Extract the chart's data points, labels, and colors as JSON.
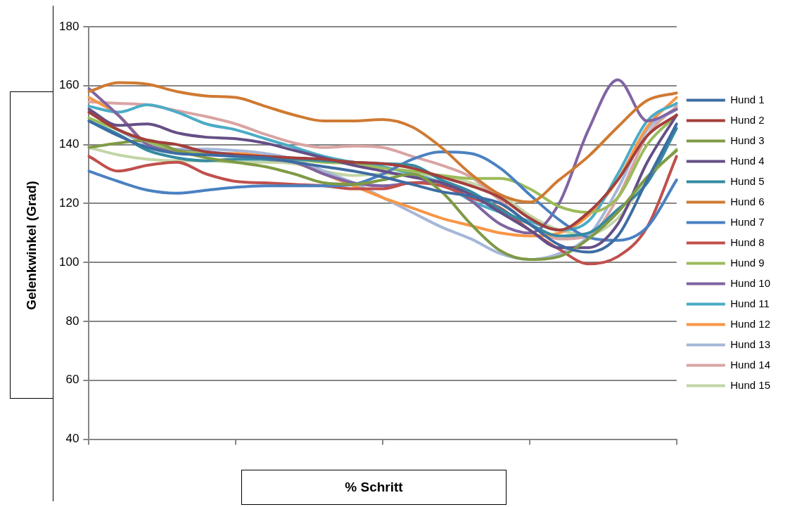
{
  "chart_data": {
    "type": "line",
    "xlabel": "% Schritt",
    "ylabel": "Gelenkwinkel (Grad)",
    "categories": [
      null,
      null,
      null,
      null,
      null,
      null,
      null,
      null,
      null,
      null,
      null,
      null,
      null,
      null,
      null,
      null,
      null,
      null,
      null,
      null,
      null
    ],
    "ylim": [
      40,
      180
    ],
    "yticks": [
      40,
      60,
      80,
      100,
      120,
      140,
      160,
      180
    ],
    "grid": "y",
    "legend": "right",
    "marker": "none",
    "line_style": "solid",
    "series": [
      {
        "name": "Hund 1",
        "color": "#3d6ca3",
        "values": [
          148,
          143,
          139,
          137,
          136.5,
          136,
          135.5,
          134,
          132.5,
          131,
          129,
          126.5,
          124,
          122.5,
          120,
          113,
          106,
          103.5,
          109,
          128,
          147
        ]
      },
      {
        "name": "Hund 2",
        "color": "#a33f3c",
        "values": [
          151,
          145,
          141.5,
          140,
          137.5,
          136.5,
          136,
          135.5,
          135,
          134,
          133.5,
          132,
          129,
          126,
          122,
          115,
          111,
          117,
          128,
          143,
          150
        ]
      },
      {
        "name": "Hund 3",
        "color": "#7f9a45",
        "values": [
          139,
          140.5,
          141.5,
          138,
          135.5,
          134,
          132.5,
          130,
          127,
          126.5,
          128,
          130,
          124,
          113,
          104,
          101,
          102,
          108,
          117,
          129,
          138
        ]
      },
      {
        "name": "Hund 4",
        "color": "#654f86",
        "values": [
          152,
          146.5,
          147,
          144,
          142.5,
          142,
          140.5,
          138,
          135.5,
          133,
          131,
          129,
          127,
          123,
          117,
          111,
          105,
          105,
          113,
          134,
          150
        ]
      },
      {
        "name": "Hund 5",
        "color": "#358ba0",
        "values": [
          148,
          143.5,
          138,
          135.5,
          134.5,
          135,
          135,
          135,
          134.5,
          134,
          133.5,
          133,
          128,
          124,
          118,
          113,
          109,
          110,
          118,
          127,
          145.5
        ]
      },
      {
        "name": "Hund 6",
        "color": "#cf7a32",
        "values": [
          158,
          161,
          160.5,
          158,
          156.5,
          156,
          153,
          150,
          148,
          148,
          148.5,
          146,
          139,
          130,
          123,
          120.5,
          128,
          136,
          146,
          155,
          157.5
        ]
      },
      {
        "name": "Hund 7",
        "color": "#4a81c2",
        "values": [
          131,
          127.5,
          124.5,
          123.5,
          124.5,
          125.5,
          126,
          126,
          126,
          126.5,
          130,
          135,
          137.5,
          137,
          132,
          123,
          114.5,
          108.5,
          107.5,
          112,
          128
        ]
      },
      {
        "name": "Hund 8",
        "color": "#c0504d",
        "values": [
          136,
          131,
          133,
          134,
          130,
          127.5,
          127,
          126.5,
          126,
          125,
          125,
          127,
          126,
          122,
          118.5,
          111,
          104.5,
          99.5,
          102,
          112,
          136
        ]
      },
      {
        "name": "Hund 9",
        "color": "#9bbb59",
        "values": [
          149,
          145,
          141,
          138,
          137,
          136,
          135.5,
          135,
          134,
          133.5,
          132,
          131,
          129.5,
          128.5,
          128.5,
          125,
          119,
          117,
          122,
          140,
          150
        ]
      },
      {
        "name": "Hund 10",
        "color": "#8064a2",
        "values": [
          159,
          150,
          140,
          138,
          137.5,
          136.5,
          135,
          134,
          130,
          127,
          126,
          127,
          127.5,
          121,
          113,
          110,
          120,
          145,
          162,
          148,
          152
        ]
      },
      {
        "name": "Hund 11",
        "color": "#4bacc6",
        "values": [
          153,
          151,
          153.5,
          151,
          147,
          145,
          142,
          139,
          136,
          134,
          132.5,
          130,
          127,
          121,
          117,
          114,
          111,
          114,
          130,
          148,
          154
        ]
      },
      {
        "name": "Hund 12",
        "color": "#f79646",
        "values": [
          156,
          150,
          140,
          137.5,
          137,
          137,
          136,
          134,
          130,
          126,
          122,
          118.5,
          115,
          112.5,
          110,
          109,
          110,
          116,
          128,
          146,
          156
        ]
      },
      {
        "name": "Hund 13",
        "color": "#a5b7d8",
        "values": [
          151,
          145,
          140,
          138.5,
          138.5,
          138,
          137,
          135,
          131,
          127,
          122,
          117,
          112,
          108,
          103,
          101,
          103,
          109,
          125,
          145,
          152
        ]
      },
      {
        "name": "Hund 14",
        "color": "#d9a4a3",
        "values": [
          154.5,
          154,
          153.5,
          151.5,
          149.5,
          147,
          143.5,
          140.5,
          139,
          139.5,
          139,
          136,
          133,
          129,
          121,
          113,
          108,
          109,
          122,
          143,
          153
        ]
      },
      {
        "name": "Hund 15",
        "color": "#c3d5a6",
        "values": [
          139,
          136.5,
          135,
          134.5,
          134.5,
          134,
          134,
          133.5,
          131,
          129.5,
          130,
          130,
          129,
          127,
          123,
          116,
          111,
          109.5,
          115,
          128,
          138.5
        ]
      }
    ]
  }
}
